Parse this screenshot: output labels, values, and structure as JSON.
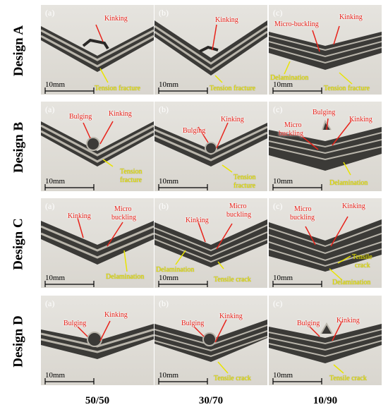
{
  "rows": [
    {
      "label": "Design A",
      "panels": [
        {
          "tag": "(a)",
          "scale": "10mm",
          "red": [
            "Kinking"
          ],
          "yellow": [
            "Tension fracture"
          ]
        },
        {
          "tag": "(b)",
          "scale": "10mm",
          "red": [
            "Kinking"
          ],
          "yellow": [
            "Tension fracture"
          ]
        },
        {
          "tag": "(c)",
          "scale": "10mm",
          "red": [
            "Micro-buckling",
            "Kinking"
          ],
          "yellow": [
            "Delamination",
            "Tension fracture"
          ]
        }
      ]
    },
    {
      "label": "Design B",
      "panels": [
        {
          "tag": "(a)",
          "scale": "10mm",
          "red": [
            "Bulging",
            "Kinking"
          ],
          "yellow": [
            "Tension",
            "fracture"
          ]
        },
        {
          "tag": "(b)",
          "scale": "10mm",
          "red": [
            "Bulging",
            "Kinking"
          ],
          "yellow": [
            "Tension",
            "fracture"
          ]
        },
        {
          "tag": "(c)",
          "scale": "10mm",
          "red": [
            "Micro",
            "buckling",
            "Bulging",
            "Kinking"
          ],
          "yellow": [
            "Delamination"
          ]
        }
      ]
    },
    {
      "label": "Design C",
      "panels": [
        {
          "tag": "(a)",
          "scale": "10mm",
          "red": [
            "Kinking",
            "Micro",
            "buckling"
          ],
          "yellow": [
            "Delamination"
          ]
        },
        {
          "tag": "(b)",
          "scale": "10mm",
          "red": [
            "Kinking",
            "Micro",
            "buckling"
          ],
          "yellow": [
            "Delamination",
            "Tensile crack"
          ]
        },
        {
          "tag": "(c)",
          "scale": "10mm",
          "red": [
            "Micro",
            "buckling",
            "Kinking"
          ],
          "yellow": [
            "Tensile",
            "crack",
            "Delamination"
          ]
        }
      ]
    },
    {
      "label": "Design D",
      "panels": [
        {
          "tag": "(a)",
          "scale": "10mm",
          "red": [
            "Bulging",
            "Kinking"
          ],
          "yellow": []
        },
        {
          "tag": "(b)",
          "scale": "10mm",
          "red": [
            "Bulging",
            "Kinking"
          ],
          "yellow": [
            "Tensile crack"
          ]
        },
        {
          "tag": "(c)",
          "scale": "10mm",
          "red": [
            "Bulging",
            "Kinking"
          ],
          "yellow": [
            "Tensile crack"
          ]
        }
      ]
    }
  ],
  "columns": [
    "50/50",
    "30/70",
    "10/90"
  ],
  "colors": {
    "red_annotation": "#e8221a",
    "yellow_annotation": "#e9e400",
    "specimen_dark": "#3b3a37",
    "specimen_light": "#b9b5ab",
    "background": "#ffffff"
  }
}
